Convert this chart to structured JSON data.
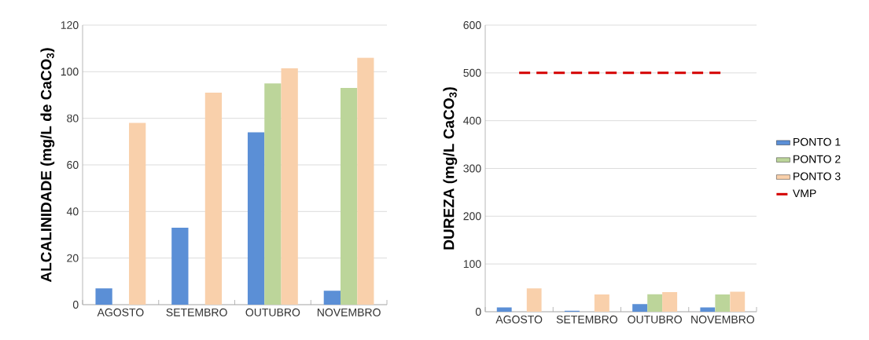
{
  "chart_data": [
    {
      "type": "bar",
      "ylabel": "ALCALINIDADE  (mg/L de CaCO$_{3}$)",
      "categories": [
        "AGOSTO",
        "SETEMBRO",
        "OUTUBRO",
        "NOVEMBRO"
      ],
      "series": [
        {
          "color": "#5b8fd6",
          "values": [
            7,
            33,
            74,
            6
          ]
        },
        {
          "color": "#bcd59a",
          "values": [
            null,
            null,
            95,
            93
          ]
        },
        {
          "color": "#f9d0ab",
          "values": [
            78,
            91,
            101.5,
            106
          ]
        }
      ],
      "ylim": [
        0,
        120
      ],
      "yticks": [
        0,
        20,
        40,
        60,
        80,
        100,
        120
      ],
      "grid": "y",
      "legend": false
    },
    {
      "type": "bar",
      "ylabel": "DUREZA (mg/L CaCO$_{3}$)",
      "categories": [
        "AGOSTO",
        "SETEMBRO",
        "OUTUBRO",
        "NOVEMBRO"
      ],
      "series": [
        {
          "name": "PONTO 1",
          "color": "#5b8fd6",
          "values": [
            9,
            2,
            16,
            9
          ]
        },
        {
          "name": "PONTO 2",
          "color": "#bcd59a",
          "values": [
            null,
            null,
            37,
            36
          ]
        },
        {
          "name": "PONTO 3",
          "color": "#f9d0ab",
          "values": [
            49,
            36,
            41,
            42
          ]
        },
        {
          "name": "VMP",
          "type": "line",
          "color": "#d40000",
          "line_style": "dashed",
          "marker": "none",
          "values": [
            500,
            500,
            500,
            500
          ]
        }
      ],
      "ylim": [
        0,
        600
      ],
      "yticks": [
        0,
        100,
        200,
        300,
        400,
        500,
        600
      ],
      "grid": "y",
      "legend": "right"
    }
  ]
}
